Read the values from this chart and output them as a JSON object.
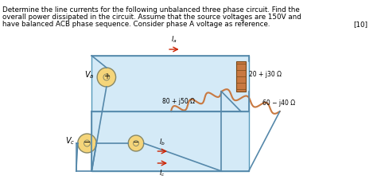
{
  "text_lines": [
    "Determine the line currents for the following unbalanced three phase circuit. Find the",
    "overall power dissipated in the circuit. Assume that the source voltages are 150V and",
    "have balanced ACB phase sequence. Consider phase A voltage as reference."
  ],
  "marks": "[10]",
  "bg_color": "#ffffff",
  "circuit": {
    "Va_label": "V_a",
    "Vb_label": "V_b",
    "Vc_label": "V_c",
    "Ia_label": "I_a",
    "Ib_label": "I_b",
    "Ic_label": "I_c",
    "Z1_label": "20 + j30 Ω",
    "Z2_label": "80 + j50 Ω",
    "Z3_label": "60 − j40 Ω"
  }
}
